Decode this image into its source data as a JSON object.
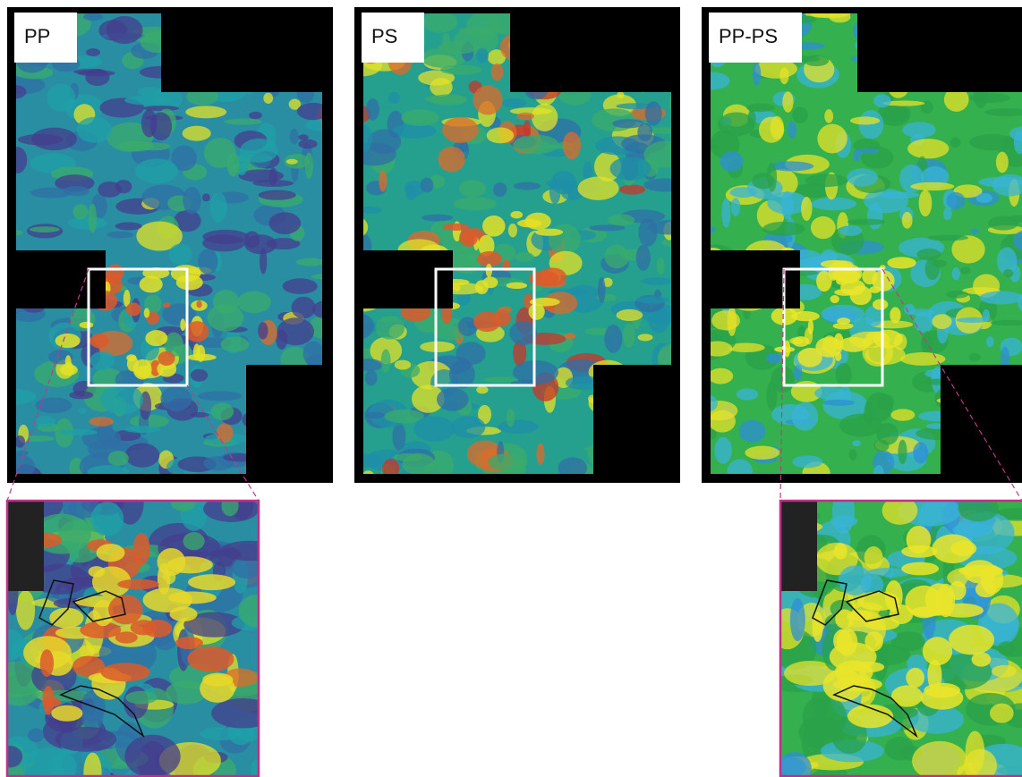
{
  "panels": [
    {
      "label": "PP"
    },
    {
      "label": "PS"
    },
    {
      "label": "PP-PS"
    }
  ]
}
